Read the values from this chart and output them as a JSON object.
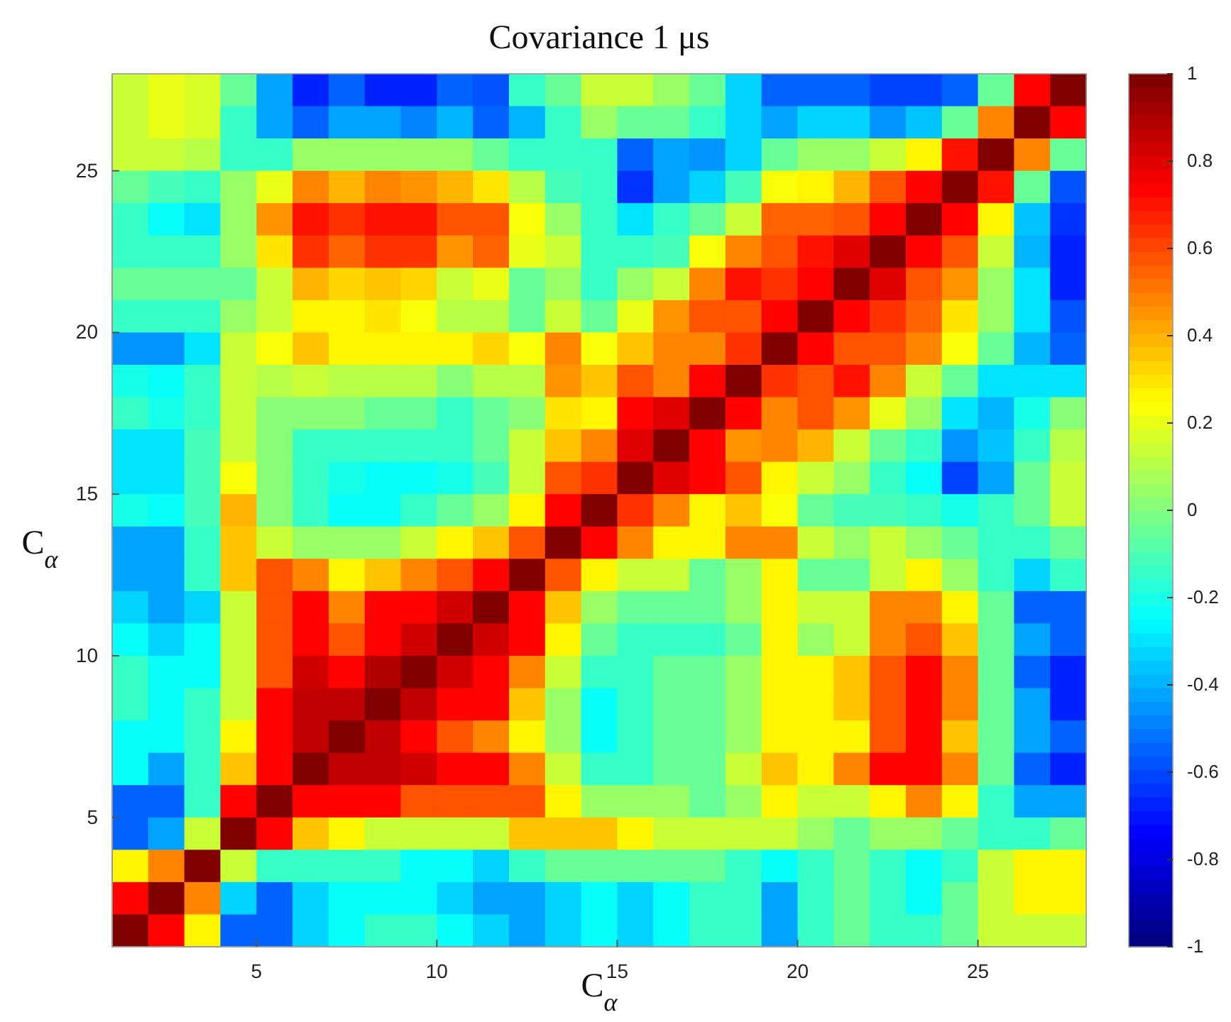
{
  "chart_data": {
    "type": "heatmap",
    "title": "Covariance 1 μs",
    "xlabel": "C$_{α}$",
    "ylabel": "C$_{α}$",
    "x": [
      1.5,
      2.5,
      3.5,
      4.5,
      5.5,
      6.5,
      7.5,
      8.5,
      9.5,
      10.5,
      11.5,
      12.5,
      13.5,
      14.5,
      15.5,
      16.5,
      17.5,
      18.5,
      19.5,
      20.5,
      21.5,
      22.5,
      23.5,
      24.5,
      25.5,
      26.5,
      27.5
    ],
    "y": [
      27.5,
      26.5,
      25.5,
      24.5,
      23.5,
      22.5,
      21.5,
      20.5,
      19.5,
      18.5,
      17.5,
      16.5,
      15.5,
      14.5,
      13.5,
      12.5,
      11.5,
      10.5,
      9.5,
      8.5,
      7.5,
      6.5,
      5.5,
      4.5,
      3.5,
      2.5,
      1.5
    ],
    "xlim": [
      1,
      28
    ],
    "xticks": [
      5,
      10,
      15,
      20,
      25
    ],
    "ylim": [
      1,
      28
    ],
    "yticks": [
      5,
      10,
      15,
      20,
      25
    ],
    "clim": [
      -1,
      1
    ],
    "cticks": [
      -1,
      -0.8,
      -0.6,
      -0.4,
      -0.2,
      0,
      0.2,
      0.4,
      0.6,
      0.8,
      1
    ],
    "cells": [
      [
        0.15,
        0.22,
        0.18,
        -0.05,
        -0.42,
        -0.68,
        -0.55,
        -0.68,
        -0.68,
        -0.55,
        -0.6,
        -0.15,
        -0.05,
        0.15,
        0.15,
        0.05,
        -0.05,
        -0.33,
        -0.55,
        -0.55,
        -0.55,
        -0.62,
        -0.62,
        -0.55,
        -0.05,
        0.75,
        1
      ],
      [
        0.15,
        0.22,
        0.18,
        -0.15,
        -0.42,
        -0.55,
        -0.42,
        -0.42,
        -0.5,
        -0.4,
        -0.55,
        -0.4,
        -0.15,
        0.05,
        -0.05,
        -0.05,
        -0.15,
        -0.33,
        -0.42,
        -0.33,
        -0.33,
        -0.45,
        -0.35,
        -0.05,
        0.48,
        1,
        0.75
      ],
      [
        0.15,
        0.15,
        0.1,
        -0.15,
        -0.15,
        0.05,
        0.05,
        0.05,
        0.05,
        0.05,
        -0.05,
        -0.15,
        -0.15,
        -0.15,
        -0.55,
        -0.42,
        -0.45,
        -0.33,
        -0.05,
        0.05,
        0.05,
        0.15,
        0.28,
        0.7,
        1,
        0.48,
        -0.05
      ],
      [
        -0.05,
        -0.1,
        -0.15,
        0.05,
        0.2,
        0.48,
        0.4,
        0.5,
        0.45,
        0.4,
        0.3,
        0.1,
        -0.1,
        -0.15,
        -0.65,
        -0.42,
        -0.33,
        -0.1,
        0.25,
        0.28,
        0.4,
        0.6,
        0.75,
        1,
        0.7,
        -0.05,
        -0.6
      ],
      [
        -0.15,
        -0.25,
        -0.3,
        0.05,
        0.45,
        0.72,
        0.65,
        0.72,
        0.7,
        0.6,
        0.6,
        0.25,
        0.05,
        -0.15,
        -0.3,
        -0.15,
        -0.05,
        0.15,
        0.55,
        0.55,
        0.6,
        0.75,
        1,
        0.75,
        0.28,
        -0.38,
        -0.65
      ],
      [
        -0.15,
        -0.15,
        -0.15,
        0.05,
        0.3,
        0.65,
        0.55,
        0.65,
        0.65,
        0.45,
        0.55,
        0.2,
        0.15,
        -0.15,
        -0.15,
        -0.1,
        0.25,
        0.5,
        0.6,
        0.7,
        0.8,
        1,
        0.75,
        0.6,
        0.15,
        -0.4,
        -0.68
      ],
      [
        -0.05,
        -0.05,
        -0.05,
        -0.05,
        0.15,
        0.4,
        0.32,
        0.38,
        0.32,
        0.15,
        0.2,
        -0.05,
        0.05,
        -0.15,
        0.05,
        0.15,
        0.5,
        0.7,
        0.65,
        0.75,
        1,
        0.8,
        0.6,
        0.45,
        0.05,
        -0.3,
        -0.68
      ],
      [
        -0.15,
        -0.15,
        -0.15,
        0.05,
        0.15,
        0.28,
        0.28,
        0.3,
        0.25,
        0.1,
        0.1,
        -0.05,
        0.15,
        -0.05,
        0.2,
        0.45,
        0.6,
        0.6,
        0.75,
        1,
        0.75,
        0.65,
        0.55,
        0.3,
        0.05,
        -0.3,
        -0.6
      ],
      [
        -0.45,
        -0.45,
        -0.3,
        0.15,
        0.25,
        0.35,
        0.28,
        0.28,
        0.28,
        0.28,
        0.32,
        0.25,
        0.5,
        0.25,
        0.35,
        0.5,
        0.5,
        0.65,
        1,
        0.75,
        0.6,
        0.6,
        0.5,
        0.25,
        -0.05,
        -0.4,
        -0.55
      ],
      [
        -0.2,
        -0.25,
        -0.15,
        0.15,
        0.1,
        0.15,
        0.1,
        0.1,
        0.1,
        0,
        0.1,
        0.1,
        0.45,
        0.35,
        0.6,
        0.5,
        0.75,
        1,
        0.65,
        0.6,
        0.7,
        0.5,
        0.15,
        -0.05,
        -0.3,
        -0.3,
        -0.3
      ],
      [
        -0.15,
        -0.2,
        -0.15,
        0.15,
        0,
        0,
        0,
        -0.05,
        -0.05,
        -0.15,
        -0.05,
        0,
        0.3,
        0.28,
        0.75,
        0.8,
        1,
        0.75,
        0.5,
        0.6,
        0.45,
        0.2,
        0.05,
        -0.3,
        -0.4,
        -0.2,
        0
      ],
      [
        -0.3,
        -0.3,
        -0.1,
        0.15,
        0,
        -0.15,
        -0.15,
        -0.15,
        -0.15,
        -0.15,
        -0.05,
        0.15,
        0.38,
        0.5,
        0.8,
        1,
        0.75,
        0.45,
        0.5,
        0.4,
        0.15,
        -0.05,
        -0.15,
        -0.45,
        -0.35,
        -0.15,
        0.1
      ],
      [
        -0.3,
        -0.3,
        -0.1,
        0.25,
        0,
        -0.15,
        -0.2,
        -0.25,
        -0.25,
        -0.2,
        -0.1,
        0.15,
        0.6,
        0.65,
        1,
        0.8,
        0.75,
        0.6,
        0.28,
        0.15,
        0.05,
        -0.15,
        -0.25,
        -0.62,
        -0.42,
        -0.05,
        0.15
      ],
      [
        -0.2,
        -0.25,
        -0.1,
        0.4,
        0,
        -0.15,
        -0.25,
        -0.25,
        -0.15,
        -0.05,
        0.05,
        0.28,
        0.75,
        1,
        0.65,
        0.48,
        0.28,
        0.35,
        0.25,
        -0.05,
        -0.1,
        -0.1,
        -0.15,
        -0.2,
        -0.15,
        -0.05,
        0.15
      ],
      [
        -0.42,
        -0.42,
        -0.15,
        0.38,
        0.15,
        0.05,
        0.05,
        0.05,
        0.15,
        0.28,
        0.38,
        0.6,
        1,
        0.75,
        0.48,
        0.28,
        0.28,
        0.48,
        0.48,
        0.15,
        0.05,
        0.15,
        0.05,
        -0.05,
        -0.15,
        -0.15,
        -0.05
      ],
      [
        -0.42,
        -0.42,
        -0.15,
        0.38,
        0.6,
        0.48,
        0.28,
        0.38,
        0.48,
        0.6,
        0.75,
        1,
        0.6,
        0.28,
        0.15,
        0.15,
        -0.05,
        0.05,
        0.28,
        -0.05,
        -0.05,
        0.15,
        0.28,
        0.05,
        -0.15,
        -0.33,
        -0.15
      ],
      [
        -0.33,
        -0.42,
        -0.33,
        0.15,
        0.6,
        0.75,
        0.48,
        0.75,
        0.75,
        0.85,
        1,
        0.75,
        0.38,
        0.05,
        -0.05,
        -0.05,
        -0.05,
        0.05,
        0.28,
        0.15,
        0.15,
        0.48,
        0.48,
        0.28,
        -0.05,
        -0.55,
        -0.55
      ],
      [
        -0.25,
        -0.33,
        -0.25,
        0.15,
        0.6,
        0.75,
        0.6,
        0.75,
        0.85,
        1,
        0.85,
        0.75,
        0.28,
        -0.05,
        -0.15,
        -0.15,
        -0.15,
        -0.05,
        0.28,
        0.05,
        0.15,
        0.48,
        0.6,
        0.38,
        -0.05,
        -0.42,
        -0.55
      ],
      [
        -0.15,
        -0.25,
        -0.25,
        0.15,
        0.6,
        0.85,
        0.75,
        0.9,
        1,
        0.85,
        0.75,
        0.48,
        0.15,
        -0.15,
        -0.15,
        -0.05,
        -0.05,
        0.05,
        0.28,
        0.28,
        0.38,
        0.6,
        0.75,
        0.48,
        -0.05,
        -0.55,
        -0.68
      ],
      [
        -0.15,
        -0.25,
        -0.15,
        0.15,
        0.75,
        0.88,
        0.88,
        1,
        0.88,
        0.75,
        0.75,
        0.38,
        0.05,
        -0.25,
        -0.15,
        -0.05,
        -0.05,
        0.05,
        0.28,
        0.28,
        0.38,
        0.6,
        0.75,
        0.48,
        -0.05,
        -0.42,
        -0.68
      ],
      [
        -0.25,
        -0.25,
        -0.15,
        0.28,
        0.75,
        0.88,
        1,
        0.88,
        0.75,
        0.6,
        0.48,
        0.28,
        0.05,
        -0.25,
        -0.15,
        -0.05,
        -0.05,
        0.05,
        0.28,
        0.28,
        0.28,
        0.6,
        0.75,
        0.38,
        -0.05,
        -0.42,
        -0.55
      ],
      [
        -0.25,
        -0.42,
        -0.15,
        0.38,
        0.75,
        1,
        0.88,
        0.88,
        0.85,
        0.75,
        0.75,
        0.48,
        0.15,
        -0.15,
        -0.15,
        -0.05,
        -0.05,
        0.15,
        0.38,
        0.28,
        0.48,
        0.75,
        0.75,
        0.48,
        -0.05,
        -0.55,
        -0.68
      ],
      [
        -0.55,
        -0.55,
        -0.15,
        0.75,
        1,
        0.75,
        0.75,
        0.75,
        0.6,
        0.6,
        0.6,
        0.6,
        0.28,
        0.05,
        0.05,
        0.05,
        -0.05,
        0.05,
        0.28,
        0.15,
        0.15,
        0.28,
        0.48,
        0.28,
        -0.15,
        -0.42,
        -0.42
      ],
      [
        -0.55,
        -0.42,
        0.15,
        1,
        0.75,
        0.38,
        0.28,
        0.15,
        0.15,
        0.15,
        0.15,
        0.38,
        0.38,
        0.38,
        0.28,
        0.15,
        0.15,
        0.15,
        0.15,
        0.05,
        -0.05,
        0.05,
        0.05,
        -0.05,
        -0.15,
        -0.15,
        -0.05
      ],
      [
        0.28,
        0.48,
        1,
        0.15,
        -0.15,
        -0.15,
        -0.15,
        -0.15,
        -0.25,
        -0.25,
        -0.33,
        -0.15,
        -0.05,
        -0.05,
        -0.05,
        -0.05,
        -0.05,
        -0.15,
        -0.25,
        -0.15,
        -0.05,
        -0.15,
        -0.25,
        -0.15,
        0.15,
        0.28,
        0.28
      ],
      [
        0.75,
        1,
        0.48,
        -0.33,
        -0.55,
        -0.33,
        -0.25,
        -0.25,
        -0.25,
        -0.33,
        -0.42,
        -0.42,
        -0.33,
        -0.25,
        -0.33,
        -0.25,
        -0.15,
        -0.15,
        -0.42,
        -0.15,
        -0.05,
        -0.15,
        -0.25,
        -0.05,
        0.15,
        0.28,
        0.28
      ],
      [
        1,
        0.75,
        0.28,
        -0.55,
        -0.55,
        -0.33,
        -0.25,
        -0.15,
        -0.15,
        -0.25,
        -0.33,
        -0.42,
        -0.33,
        -0.25,
        -0.33,
        -0.25,
        -0.15,
        -0.15,
        -0.42,
        -0.15,
        -0.05,
        -0.15,
        -0.15,
        -0.05,
        0.15,
        0.15,
        0.15
      ]
    ]
  }
}
